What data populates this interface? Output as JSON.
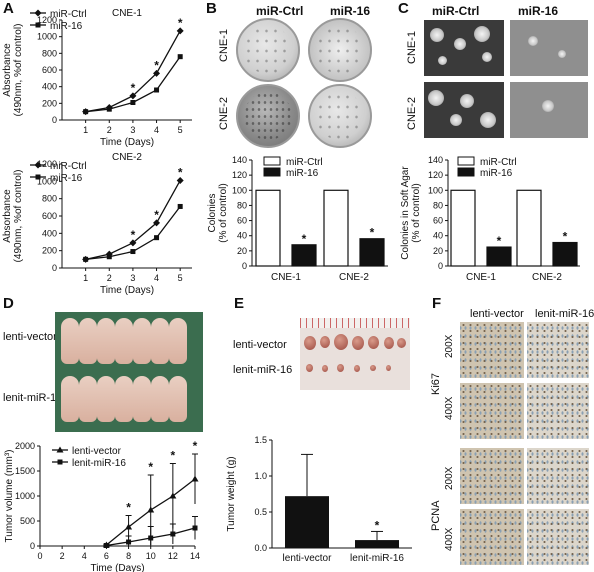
{
  "panels": {
    "A": {
      "label": "A"
    },
    "B": {
      "label": "B"
    },
    "C": {
      "label": "C"
    },
    "D": {
      "label": "D"
    },
    "E": {
      "label": "E"
    },
    "F": {
      "label": "F"
    }
  },
  "panel_b": {
    "col_ctrl": "miR-Ctrl",
    "col_16": "miR-16",
    "row1": "CNE-1",
    "row2": "CNE-2"
  },
  "panel_c": {
    "col_ctrl": "miR-Ctrl",
    "col_16": "miR-16",
    "row1": "CNE-1",
    "row2": "CNE-2"
  },
  "panel_d": {
    "row1": "lenti-vector",
    "row2": "lenit-miR-16"
  },
  "panel_e": {
    "row1": "lenti-vector",
    "row2": "lenit-miR-16"
  },
  "panel_f": {
    "col1": "lenti-vector",
    "col2": "lenit-miR-16",
    "grp1": "Ki67",
    "grp2": "PCNA",
    "mag1": "200X",
    "mag2": "400X",
    "mag3": "200X",
    "mag4": "400X"
  },
  "colors": {
    "black": "#111111",
    "white": "#ffffff"
  },
  "chart_data": [
    {
      "id": "A-top",
      "type": "line",
      "title": "CNE-1",
      "xlabel": "Time (Days)",
      "ylabel": "Absorbance (490nm, %of control)",
      "x": [
        1,
        2,
        3,
        4,
        5
      ],
      "xlim": [
        0,
        5.5
      ],
      "ylim": [
        0,
        1200
      ],
      "yticks": [
        0,
        200,
        400,
        600,
        800,
        1000,
        1200
      ],
      "xticks": [
        1,
        2,
        3,
        4,
        5
      ],
      "series": [
        {
          "name": "miR-Ctrl",
          "values": [
            100,
            150,
            290,
            560,
            1070
          ],
          "marker": "diamond"
        },
        {
          "name": "miR-16",
          "values": [
            100,
            130,
            210,
            360,
            760
          ],
          "marker": "square"
        }
      ],
      "annotations": [
        {
          "x": 3,
          "text": "*"
        },
        {
          "x": 4,
          "text": "*"
        },
        {
          "x": 5,
          "text": "*"
        }
      ]
    },
    {
      "id": "A-bottom",
      "type": "line",
      "title": "CNE-2",
      "xlabel": "Time (Days)",
      "ylabel": "Absorbance (490nm, %of control)",
      "x": [
        1,
        2,
        3,
        4,
        5
      ],
      "xlim": [
        0,
        5.5
      ],
      "ylim": [
        0,
        1200
      ],
      "yticks": [
        0,
        200,
        400,
        600,
        800,
        1000,
        1200
      ],
      "xticks": [
        1,
        2,
        3,
        4,
        5
      ],
      "series": [
        {
          "name": "miR-Ctrl",
          "values": [
            100,
            160,
            290,
            520,
            1010
          ],
          "marker": "diamond"
        },
        {
          "name": "miR-16",
          "values": [
            100,
            130,
            190,
            350,
            710
          ],
          "marker": "square"
        }
      ],
      "annotations": [
        {
          "x": 3,
          "text": "*"
        },
        {
          "x": 4,
          "text": "*"
        },
        {
          "x": 5,
          "text": "*"
        }
      ]
    },
    {
      "id": "B-bar",
      "type": "bar",
      "ylabel": "Colonies (% of control)",
      "categories": [
        "CNE-1",
        "CNE-2"
      ],
      "ylim": [
        0,
        140
      ],
      "yticks": [
        0,
        20,
        40,
        60,
        80,
        100,
        120,
        140
      ],
      "series": [
        {
          "name": "miR-Ctrl",
          "values": [
            100,
            100
          ],
          "fill": "#ffffff"
        },
        {
          "name": "miR-16",
          "values": [
            28,
            36
          ],
          "fill": "#111111"
        }
      ],
      "annotations": [
        "*",
        "*"
      ]
    },
    {
      "id": "C-bar",
      "type": "bar",
      "ylabel": "Colonies in Soft Agar (% of control)",
      "categories": [
        "CNE-1",
        "CNE-2"
      ],
      "ylim": [
        0,
        140
      ],
      "yticks": [
        0,
        20,
        40,
        60,
        80,
        100,
        120,
        140
      ],
      "series": [
        {
          "name": "miR-Ctrl",
          "values": [
            100,
            100
          ],
          "fill": "#ffffff"
        },
        {
          "name": "miR-16",
          "values": [
            25,
            31
          ],
          "fill": "#111111"
        }
      ],
      "annotations": [
        "*",
        "*"
      ]
    },
    {
      "id": "D-line",
      "type": "line",
      "xlabel": "Time (Days)",
      "ylabel": "Tumor volume (mm³)",
      "x": [
        0,
        2,
        4,
        6,
        8,
        10,
        12,
        14
      ],
      "xlim": [
        0,
        14
      ],
      "ylim": [
        0,
        2000
      ],
      "yticks": [
        0,
        500,
        1000,
        1500,
        2000
      ],
      "xticks": [
        0,
        2,
        4,
        6,
        8,
        10,
        12,
        14
      ],
      "series": [
        {
          "name": "lenti-vector",
          "x": [
            6,
            8,
            10,
            12,
            14
          ],
          "values": [
            20,
            380,
            720,
            1000,
            1340
          ],
          "err": [
            20,
            230,
            700,
            650,
            500
          ],
          "marker": "triangle"
        },
        {
          "name": "lenit-miR-16",
          "x": [
            6,
            8,
            10,
            12,
            14
          ],
          "values": [
            10,
            80,
            160,
            240,
            360
          ],
          "err": [
            10,
            120,
            230,
            200,
            230
          ],
          "marker": "square"
        }
      ],
      "annotations": [
        {
          "x": 8,
          "text": "*"
        },
        {
          "x": 10,
          "text": "*"
        },
        {
          "x": 12,
          "text": "*"
        },
        {
          "x": 14,
          "text": "*"
        }
      ]
    },
    {
      "id": "E-bar",
      "type": "bar",
      "ylabel": "Tumor weight (g)",
      "categories": [
        "lenti-vector",
        "lenit-miR-16"
      ],
      "ylim": [
        0,
        1.5
      ],
      "yticks": [
        0.0,
        0.5,
        1.0,
        1.5
      ],
      "values": [
        0.72,
        0.11
      ],
      "err": [
        0.58,
        0.12
      ],
      "annotations": [
        "",
        "*"
      ]
    }
  ]
}
